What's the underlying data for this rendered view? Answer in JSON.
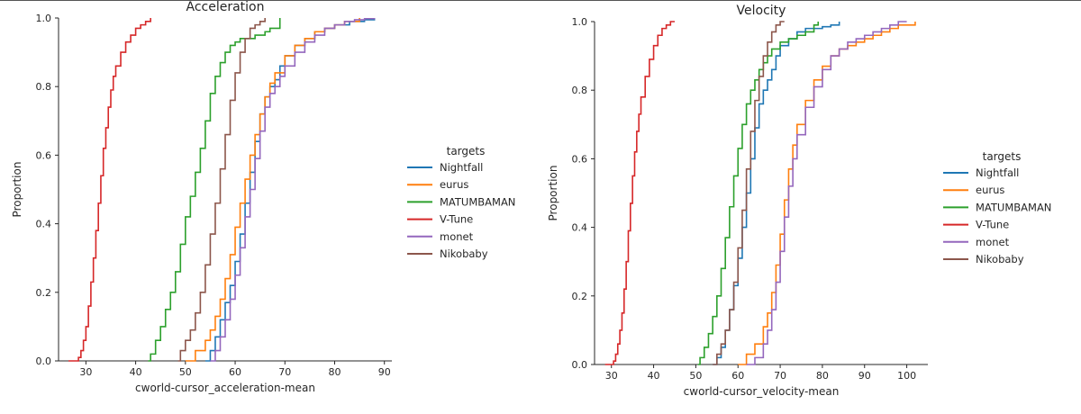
{
  "chart_data": [
    {
      "type": "line",
      "subtype": "ecdf",
      "title": "Acceleration",
      "xlabel": "cworld-cursor_acceleration-mean",
      "ylabel": "Proportion",
      "xlim": [
        24.5,
        91.5
      ],
      "ylim": [
        0,
        1
      ],
      "xticks": [
        30,
        40,
        50,
        60,
        70,
        80,
        90
      ],
      "yticks": [
        0.0,
        0.2,
        0.4,
        0.6,
        0.8,
        1.0
      ],
      "legend_title": "targets",
      "legend": "right",
      "series": [
        {
          "name": "Nightfall",
          "color": "#1f77b4",
          "x": [
            54,
            55,
            56,
            57,
            58,
            59,
            60,
            61,
            62,
            63,
            64,
            65,
            66,
            67,
            68,
            69,
            70,
            72,
            74,
            76,
            78,
            80,
            83,
            86,
            88
          ],
          "y": [
            0,
            0.03,
            0.07,
            0.12,
            0.17,
            0.22,
            0.29,
            0.37,
            0.46,
            0.55,
            0.64,
            0.72,
            0.77,
            0.8,
            0.82,
            0.86,
            0.89,
            0.92,
            0.94,
            0.96,
            0.97,
            0.98,
            0.99,
            0.995,
            1
          ]
        },
        {
          "name": "eurus",
          "color": "#ff7f0e",
          "x": [
            50,
            52,
            54,
            55,
            56,
            57,
            58,
            59,
            60,
            61,
            62,
            63,
            64,
            65,
            66,
            67,
            68,
            70,
            72,
            74,
            76,
            78,
            80,
            82,
            85
          ],
          "y": [
            0,
            0.03,
            0.06,
            0.09,
            0.13,
            0.18,
            0.24,
            0.31,
            0.39,
            0.46,
            0.53,
            0.6,
            0.66,
            0.72,
            0.77,
            0.81,
            0.84,
            0.89,
            0.92,
            0.94,
            0.96,
            0.97,
            0.98,
            0.99,
            1
          ]
        },
        {
          "name": "MATUMBAMAN",
          "color": "#2ca02c",
          "x": [
            42.5,
            43,
            44,
            45,
            46,
            47,
            48,
            49,
            50,
            51,
            52,
            53,
            54,
            55,
            56,
            57,
            58,
            59,
            60,
            61,
            62,
            64,
            66,
            67,
            69
          ],
          "y": [
            0,
            0.02,
            0.06,
            0.1,
            0.15,
            0.2,
            0.26,
            0.34,
            0.42,
            0.48,
            0.55,
            0.62,
            0.7,
            0.78,
            0.83,
            0.87,
            0.9,
            0.92,
            0.93,
            0.94,
            0.94,
            0.95,
            0.96,
            0.97,
            1
          ]
        },
        {
          "name": "V-Tune",
          "color": "#d62728",
          "x": [
            26.5,
            27.5,
            28.5,
            29,
            29.5,
            30,
            30.5,
            31,
            31.5,
            32,
            32.5,
            33,
            33.5,
            34,
            34.5,
            35,
            35.5,
            36,
            37,
            38,
            39,
            40,
            41,
            42,
            43
          ],
          "y": [
            0,
            0,
            0.01,
            0.03,
            0.06,
            0.1,
            0.16,
            0.23,
            0.3,
            0.38,
            0.46,
            0.54,
            0.62,
            0.68,
            0.74,
            0.79,
            0.83,
            0.86,
            0.9,
            0.93,
            0.95,
            0.97,
            0.98,
            0.99,
            1
          ]
        },
        {
          "name": "monet",
          "color": "#9467bd",
          "x": [
            55,
            56,
            57,
            58,
            59,
            60,
            61,
            62,
            63,
            64,
            65,
            66,
            67,
            68,
            69,
            70,
            72,
            74,
            76,
            78,
            80,
            82,
            84,
            86,
            88
          ],
          "y": [
            0,
            0.03,
            0.07,
            0.12,
            0.18,
            0.25,
            0.33,
            0.42,
            0.5,
            0.59,
            0.67,
            0.74,
            0.78,
            0.8,
            0.83,
            0.86,
            0.9,
            0.93,
            0.95,
            0.97,
            0.98,
            0.99,
            0.995,
            0.998,
            1
          ]
        },
        {
          "name": "Nikobaby",
          "color": "#8c564b",
          "x": [
            48.5,
            49,
            50,
            51,
            52,
            53,
            54,
            55,
            56,
            57,
            58,
            59,
            60,
            61,
            62,
            63,
            64,
            65,
            66
          ],
          "y": [
            0,
            0.03,
            0.06,
            0.09,
            0.14,
            0.2,
            0.28,
            0.37,
            0.46,
            0.56,
            0.66,
            0.76,
            0.84,
            0.9,
            0.94,
            0.97,
            0.98,
            0.99,
            1
          ]
        }
      ]
    },
    {
      "type": "line",
      "subtype": "ecdf",
      "title": "Velocity",
      "xlabel": "cworld-cursor_velocity-mean",
      "ylabel": "Proportion",
      "xlim": [
        26,
        105
      ],
      "ylim": [
        0,
        1
      ],
      "xticks": [
        30,
        40,
        50,
        60,
        70,
        80,
        90,
        100
      ],
      "yticks": [
        0.0,
        0.2,
        0.4,
        0.6,
        0.8,
        1.0
      ],
      "legend_title": "targets",
      "legend": "right",
      "series": [
        {
          "name": "Nightfall",
          "color": "#1f77b4",
          "x": [
            54,
            55,
            56,
            57,
            58,
            59,
            60,
            61,
            62,
            63,
            64,
            65,
            66,
            67,
            68,
            69,
            70,
            72,
            74,
            76,
            78,
            80,
            82,
            84
          ],
          "y": [
            0,
            0.02,
            0.05,
            0.1,
            0.16,
            0.23,
            0.31,
            0.4,
            0.5,
            0.6,
            0.69,
            0.76,
            0.8,
            0.83,
            0.86,
            0.9,
            0.93,
            0.95,
            0.97,
            0.98,
            0.98,
            0.985,
            0.99,
            1
          ]
        },
        {
          "name": "eurus",
          "color": "#ff7f0e",
          "x": [
            60,
            62,
            64,
            66,
            67,
            68,
            69,
            70,
            71,
            72,
            73,
            74,
            76,
            78,
            80,
            82,
            84,
            86,
            88,
            90,
            92,
            94,
            96,
            98,
            102
          ],
          "y": [
            0,
            0.03,
            0.06,
            0.11,
            0.15,
            0.21,
            0.29,
            0.38,
            0.48,
            0.57,
            0.64,
            0.7,
            0.77,
            0.83,
            0.87,
            0.9,
            0.92,
            0.93,
            0.94,
            0.95,
            0.96,
            0.97,
            0.98,
            0.99,
            1
          ]
        },
        {
          "name": "MATUMBAMAN",
          "color": "#2ca02c",
          "x": [
            50.5,
            51,
            52,
            53,
            54,
            55,
            56,
            57,
            58,
            59,
            60,
            61,
            62,
            63,
            64,
            65,
            66,
            67,
            68,
            70,
            72,
            74,
            76,
            78,
            79
          ],
          "y": [
            0,
            0.02,
            0.05,
            0.09,
            0.14,
            0.2,
            0.28,
            0.37,
            0.46,
            0.55,
            0.63,
            0.7,
            0.76,
            0.8,
            0.83,
            0.86,
            0.88,
            0.9,
            0.92,
            0.94,
            0.95,
            0.96,
            0.97,
            0.99,
            1
          ]
        },
        {
          "name": "V-Tune",
          "color": "#d62728",
          "x": [
            28.5,
            29.5,
            30.5,
            31,
            31.5,
            32,
            32.5,
            33,
            33.5,
            34,
            34.5,
            35,
            35.5,
            36,
            36.5,
            37,
            38,
            39,
            40,
            41,
            42,
            43,
            44,
            45
          ],
          "y": [
            0,
            0,
            0.01,
            0.03,
            0.06,
            0.1,
            0.15,
            0.22,
            0.3,
            0.39,
            0.47,
            0.55,
            0.62,
            0.68,
            0.73,
            0.78,
            0.84,
            0.89,
            0.93,
            0.96,
            0.98,
            0.99,
            1,
            1
          ]
        },
        {
          "name": "monet",
          "color": "#9467bd",
          "x": [
            62,
            64,
            66,
            67,
            68,
            69,
            70,
            71,
            72,
            73,
            74,
            76,
            78,
            80,
            82,
            84,
            86,
            88,
            90,
            92,
            94,
            96,
            98,
            100
          ],
          "y": [
            0,
            0.02,
            0.06,
            0.1,
            0.16,
            0.24,
            0.33,
            0.43,
            0.52,
            0.6,
            0.67,
            0.75,
            0.81,
            0.86,
            0.9,
            0.92,
            0.94,
            0.95,
            0.96,
            0.97,
            0.98,
            0.99,
            1,
            1
          ]
        },
        {
          "name": "Nikobaby",
          "color": "#8c564b",
          "x": [
            54,
            55,
            56,
            57,
            58,
            59,
            60,
            61,
            62,
            63,
            64,
            65,
            66,
            67,
            68,
            69,
            70,
            71
          ],
          "y": [
            0,
            0.03,
            0.06,
            0.1,
            0.16,
            0.24,
            0.34,
            0.45,
            0.57,
            0.68,
            0.77,
            0.84,
            0.9,
            0.94,
            0.97,
            0.99,
            1,
            1
          ]
        }
      ]
    }
  ]
}
